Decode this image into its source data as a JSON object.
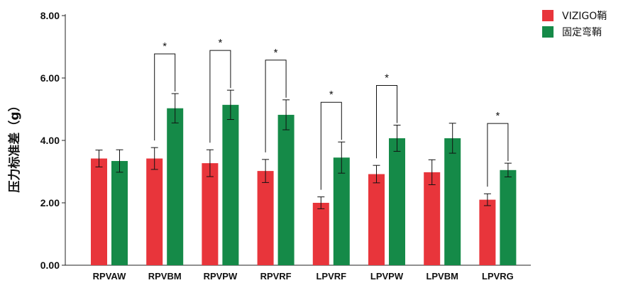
{
  "chart_data": {
    "type": "bar",
    "title": "",
    "xlabel": "",
    "ylabel": "压力标准差（g）",
    "ylim": [
      0,
      8
    ],
    "yticks": [
      "0.00",
      "2.00",
      "4.00",
      "6.00",
      "8.00"
    ],
    "categories": [
      "RPVAW",
      "RPVBM",
      "RPVPW",
      "RPVRF",
      "LPVRF",
      "LPVPW",
      "LPVBM",
      "LPVRG"
    ],
    "series": [
      {
        "name": "VIZIGO鞘",
        "color": "#e8353b",
        "values": [
          3.42,
          3.42,
          3.27,
          3.02,
          2.0,
          2.92,
          2.98,
          2.1
        ],
        "error": [
          0.27,
          0.35,
          0.43,
          0.37,
          0.19,
          0.28,
          0.4,
          0.19
        ]
      },
      {
        "name": "固定弯鞘",
        "color": "#158a48",
        "values": [
          3.34,
          5.03,
          5.14,
          4.82,
          3.45,
          4.07,
          4.07,
          3.05
        ],
        "error": [
          0.36,
          0.47,
          0.47,
          0.48,
          0.5,
          0.42,
          0.48,
          0.22
        ]
      }
    ],
    "significance": [
      {
        "category": "RPVBM",
        "label": "*"
      },
      {
        "category": "RPVPW",
        "label": "*"
      },
      {
        "category": "RPVRF",
        "label": "*"
      },
      {
        "category": "LPVRF",
        "label": "*"
      },
      {
        "category": "LPVPW",
        "label": "*"
      },
      {
        "category": "LPVRG",
        "label": "*"
      }
    ],
    "legend": {
      "position": "top-right"
    },
    "grid": false
  }
}
